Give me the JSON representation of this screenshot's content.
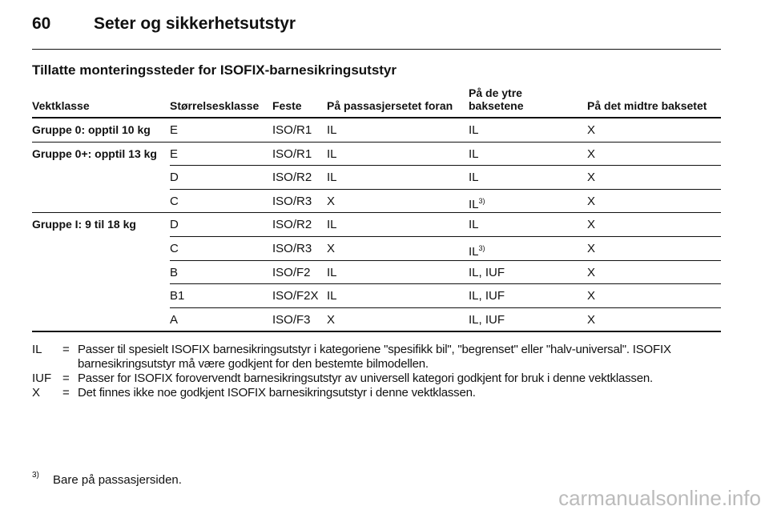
{
  "header": {
    "page": "60",
    "title": "Seter og sikkerhetsutstyr"
  },
  "section_title": "Tillatte monteringssteder for ISOFIX-barnesikringsutstyr",
  "table": {
    "columns": [
      "Vektklasse",
      "Størrelsesklasse",
      "Feste",
      "På passasjersetet foran",
      "På de ytre baksetene",
      "På det midtre baksetet"
    ],
    "groups": [
      {
        "label": "Gruppe 0: opptil 10 kg",
        "rows": [
          [
            "E",
            "ISO/R1",
            "IL",
            "IL",
            "X"
          ]
        ]
      },
      {
        "label": "Gruppe 0+: opptil 13 kg",
        "rows": [
          [
            "E",
            "ISO/R1",
            "IL",
            "IL",
            "X"
          ],
          [
            "D",
            "ISO/R2",
            "IL",
            "IL",
            "X"
          ],
          [
            "C",
            "ISO/R3",
            "X",
            {
              "text": "IL",
              "sup": "3)"
            },
            "X"
          ]
        ]
      },
      {
        "label": "Gruppe I: 9 til 18 kg",
        "rows": [
          [
            "D",
            "ISO/R2",
            "IL",
            "IL",
            "X"
          ],
          [
            "C",
            "ISO/R3",
            "X",
            {
              "text": "IL",
              "sup": "3)"
            },
            "X"
          ],
          [
            "B",
            "ISO/F2",
            "IL",
            "IL, IUF",
            "X"
          ],
          [
            "B1",
            "ISO/F2X",
            "IL",
            "IL, IUF",
            "X"
          ],
          [
            "A",
            "ISO/F3",
            "X",
            "IL, IUF",
            "X"
          ]
        ]
      }
    ]
  },
  "legend": {
    "separator": "=",
    "items": [
      {
        "abbr": "IL",
        "text": "Passer til spesielt ISOFIX barnesikringsutstyr i kategoriene \"spesifikk bil\", \"begrenset\" eller \"halv-universal\". ISOFIX barnesikringsutstyr må være godkjent for den bestemte bilmodellen."
      },
      {
        "abbr": "IUF",
        "text": "Passer for ISOFIX forovervendt barnesikringsutstyr av universell kategori godkjent for bruk i denne vektklassen."
      },
      {
        "abbr": "X",
        "text": "Det finnes ikke noe godkjent ISOFIX barnesikringsutstyr i denne vektklassen."
      }
    ]
  },
  "footnote": {
    "mark": "3)",
    "text": "Bare på passasjersiden."
  },
  "watermark": "carmanualsonline.info"
}
